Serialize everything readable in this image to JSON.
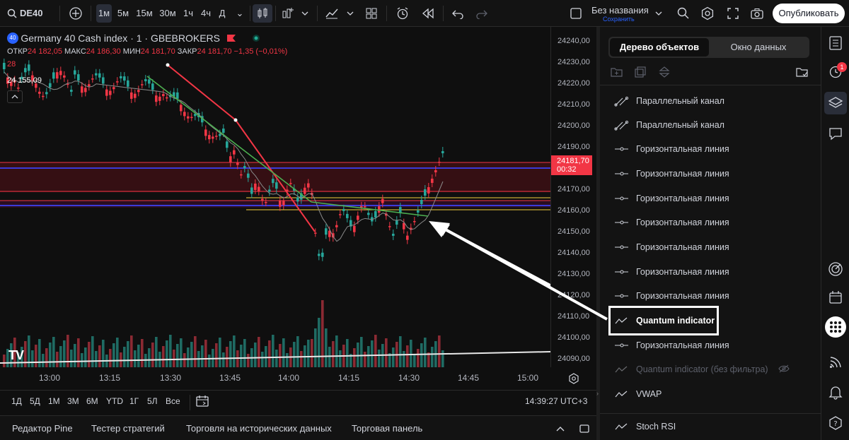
{
  "toolbar": {
    "symbol": "DE40",
    "intervals": [
      "1м",
      "5м",
      "15м",
      "30м",
      "1ч",
      "4ч",
      "Д"
    ],
    "active_interval": "1м",
    "layout_name": "Без названия",
    "layout_sub": "Сохранить",
    "publish_label": "Опубликовать"
  },
  "legend": {
    "title": "Germany 40 Cash index · 1 · GBEBROKERS",
    "badge": "40",
    "ohlc_labels": [
      "ОТКР",
      "МАКС",
      "МИН",
      "ЗАКР"
    ],
    "ohlc_values": [
      "24 182,05",
      "24 186,30",
      "24 181,70",
      "24 181,70"
    ],
    "change": "−1,35 (−0,01%)",
    "volume": "28",
    "indicator_value": "24 155,09"
  },
  "price_axis": {
    "ticks": [
      "24240,00",
      "24230,00",
      "24220,00",
      "24210,00",
      "24200,00",
      "24190,00",
      "24170,00",
      "24160,00",
      "24150,00",
      "24140,00",
      "24130,00",
      "24120,00",
      "24110,00",
      "24100,00",
      "24090,00"
    ],
    "current_price": "24181,70",
    "countdown": "00:32"
  },
  "time_axis": {
    "ticks": [
      "13:00",
      "13:15",
      "13:30",
      "13:45",
      "14:00",
      "14:15",
      "14:30",
      "14:45",
      "15:00"
    ]
  },
  "range_bar": {
    "ranges": [
      "1Д",
      "5Д",
      "1М",
      "3М",
      "6М",
      "YTD",
      "1Г",
      "5Л",
      "Все"
    ],
    "clock": "14:39:27 UTC+3"
  },
  "bottom_tabs": [
    "Редактор Pine",
    "Тестер стратегий",
    "Торговля на исторических данных",
    "Торговая панель"
  ],
  "right_panel": {
    "tabs": [
      "Дерево объектов",
      "Окно данных"
    ],
    "active_tab": "Дерево объектов",
    "objects": [
      {
        "label": "Параллельный канал",
        "icon": "channel-icon",
        "dim": false
      },
      {
        "label": "Параллельный канал",
        "icon": "channel-icon",
        "dim": false
      },
      {
        "label": "Горизонтальная линия",
        "icon": "hline-icon",
        "dim": false
      },
      {
        "label": "Горизонтальная линия",
        "icon": "hline-icon",
        "dim": false
      },
      {
        "label": "Горизонтальная линия",
        "icon": "hline-icon",
        "dim": false
      },
      {
        "label": "Горизонтальная линия",
        "icon": "hline-icon",
        "dim": false
      },
      {
        "label": "Горизонтальная линия",
        "icon": "hline-icon",
        "dim": false
      },
      {
        "label": "Горизонтальная линия",
        "icon": "hline-icon",
        "dim": false
      },
      {
        "label": "Горизонтальная линия",
        "icon": "hline-icon",
        "dim": false
      },
      {
        "label": "Quantum indicator",
        "icon": "indicator-icon",
        "dim": false,
        "highlighted": true
      },
      {
        "label": "Горизонтальная линия",
        "icon": "hline-icon",
        "dim": false
      },
      {
        "label": "Quantum indicator (без фильтра)",
        "icon": "indicator-icon",
        "dim": true
      },
      {
        "label": "VWAP",
        "icon": "indicator-icon",
        "dim": false
      },
      {
        "label": "Stoch RSI",
        "icon": "indicator-icon",
        "dim": false
      }
    ]
  },
  "strip": {
    "alert_badge": "1"
  },
  "colors": {
    "bull": "#26a69a",
    "bear": "#f23645",
    "accent": "#2962ff",
    "trend_red": "#f23645",
    "trend_green": "#4caf50",
    "zone": "#3a0f14",
    "yellow": "#f7d23e"
  }
}
